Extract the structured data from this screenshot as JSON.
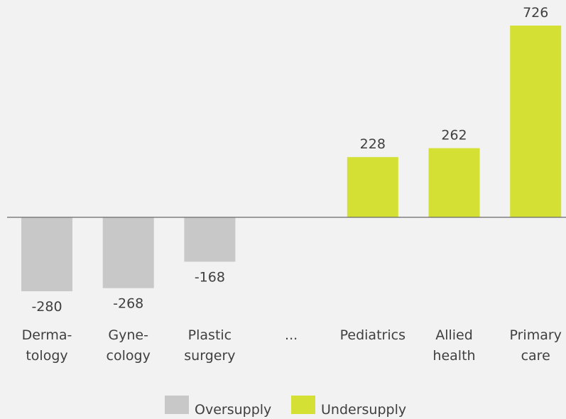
{
  "chart_data": {
    "type": "bar",
    "categories": [
      [
        "Derma-",
        "tology"
      ],
      [
        "Gyne-",
        "cology"
      ],
      [
        "Plastic",
        "surgery"
      ],
      [
        "..."
      ],
      [
        "Pediatrics"
      ],
      [
        "Allied",
        "health"
      ],
      [
        "Primary",
        "care"
      ]
    ],
    "values": [
      -280,
      -268,
      -168,
      null,
      228,
      262,
      726
    ],
    "value_labels": [
      "-280",
      "-268",
      "-168",
      "",
      "228",
      "262",
      "726"
    ],
    "title": "",
    "xlabel": "",
    "ylabel": "",
    "ylim": [
      -280,
      726
    ],
    "grid": false,
    "legend_placement": "bottom-center",
    "legend": [
      {
        "name": "Oversupply",
        "color": "#c8c8c8"
      },
      {
        "name": "Undersupply",
        "color": "#d4e034"
      }
    ],
    "colors": {
      "negative": "#c8c8c8",
      "positive": "#d4e034",
      "axis": "#6a6a6a",
      "text": "#3f3f3f",
      "background": "#f2f2f2"
    }
  }
}
